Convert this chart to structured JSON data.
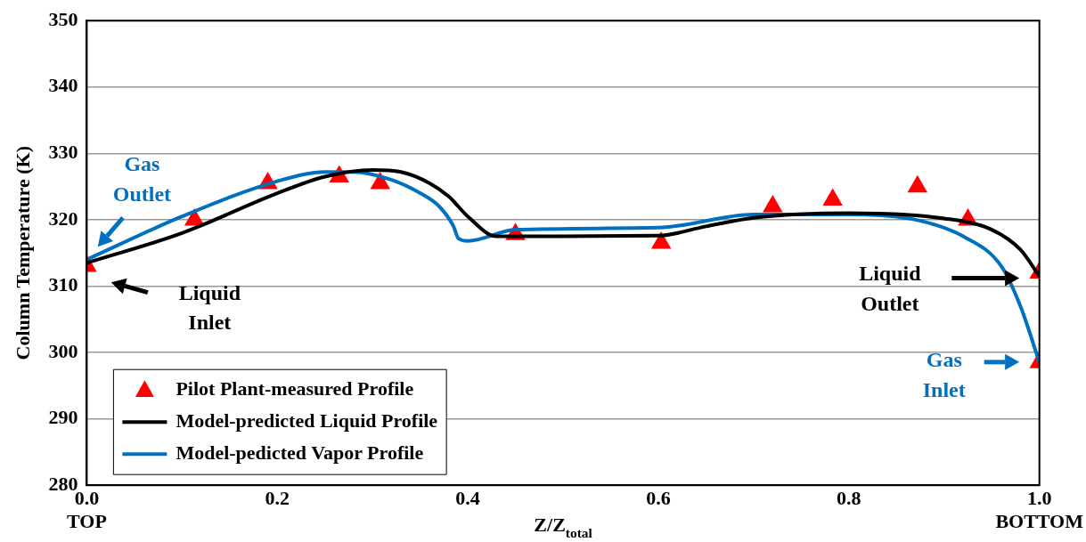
{
  "chart_data": {
    "type": "line",
    "ylabel": "Column Temperature (K)",
    "xlabel": "Z/Z$_{total}$",
    "xlim": [
      0,
      1
    ],
    "xticks": [
      {
        "value": 0,
        "label": "0.0\nTOP"
      },
      0.2,
      0.4,
      0.6,
      0.8,
      {
        "value": 1,
        "label": "1.0\nBOTTOM"
      }
    ],
    "ylim": [
      280,
      350
    ],
    "yticks": [
      280,
      290,
      300,
      310,
      320,
      330,
      340,
      350
    ],
    "grid": "y",
    "legend": "bottom left",
    "line_style": "solid",
    "series": [
      {
        "name": "Pilot Plant-measured Profile",
        "type": "scatter",
        "marker": "triangle",
        "color": "#ff0000",
        "x": [
          0,
          0.113,
          0.19,
          0.265,
          0.308,
          0.45,
          0.603,
          0.72,
          0.783,
          0.872,
          0.925,
          1.0,
          1.0
        ],
        "values": [
          313,
          320,
          325.5,
          326.5,
          325.5,
          317.8,
          316.5,
          322,
          323,
          325,
          320,
          312,
          298.5
        ]
      },
      {
        "name": "Model-predicted Liquid Profile",
        "color": "#000000",
        "x": [
          0,
          0.1,
          0.2,
          0.25,
          0.3,
          0.33,
          0.36,
          0.38,
          0.4,
          0.43,
          0.45,
          0.6,
          0.65,
          0.7,
          0.8,
          0.9,
          0.95,
          0.98,
          1.0
        ],
        "values": [
          313.5,
          318,
          324,
          326.5,
          327.5,
          327.2,
          325.5,
          323.5,
          320.5,
          317.5,
          317.5,
          317.6,
          319,
          320.3,
          321,
          320.2,
          318.5,
          315.5,
          311.5
        ]
      },
      {
        "name": "Model-pedicted Vapor Profile",
        "color": "#0070c0",
        "x": [
          0,
          0.1,
          0.2,
          0.25,
          0.28,
          0.32,
          0.35,
          0.37,
          0.385,
          0.39,
          0.4,
          0.45,
          0.6,
          0.7,
          0.8,
          0.87,
          0.92,
          0.96,
          0.98,
          1.0
        ],
        "values": [
          314,
          320.5,
          325.8,
          327.2,
          327.2,
          326,
          324,
          322,
          319,
          317.2,
          316.8,
          318.5,
          318.8,
          320.8,
          320.8,
          320,
          317.5,
          313,
          307,
          298.5
        ]
      }
    ],
    "annotations": [
      "Gas\nOutlet",
      "Liquid\nInlet",
      "Liquid\nOutlet",
      "Gas\nInlet"
    ]
  }
}
